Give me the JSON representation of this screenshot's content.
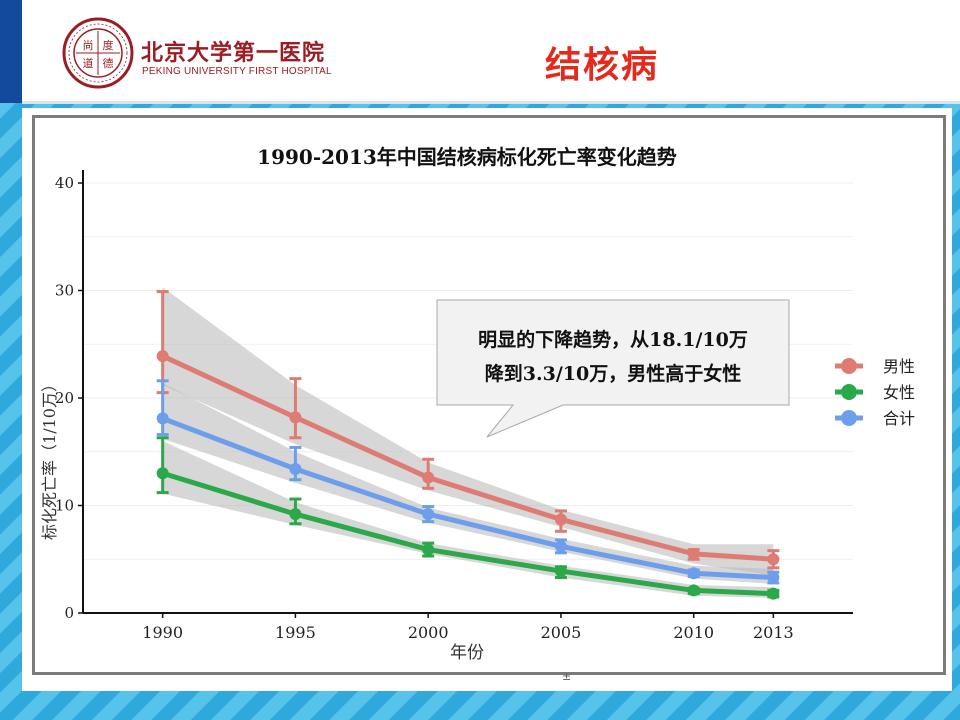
{
  "header": {
    "logo_seal_text": "尚 度 道 德",
    "logo_name_cn": "北京大学第一医院",
    "logo_name_en": "PEKING UNIVERSITY FIRST HOSPITAL",
    "page_title": "结核病"
  },
  "colors": {
    "male": "#de7b72",
    "female": "#2aa84a",
    "total": "#6d9eeb",
    "title_red": "#e32a1c",
    "logo_red": "#9b1c23",
    "band": "#c8c8c8"
  },
  "chart_data": {
    "type": "line",
    "title": "1990-2013年中国结核病标化死亡率变化趋势",
    "xlabel": "年份",
    "ylabel": "标化死亡率（1/10万）",
    "x": [
      1990,
      1995,
      2000,
      2005,
      2010,
      2013
    ],
    "x_ticks": [
      "1990",
      "1995",
      "2000",
      "2005",
      "2010",
      "2013"
    ],
    "y_ticks": [
      "0",
      "10",
      "20",
      "30",
      "40"
    ],
    "ylim": [
      0,
      40
    ],
    "grid": true,
    "legend_position": "right",
    "series": [
      {
        "name": "男性",
        "color": "#de7b72",
        "values": [
          23.9,
          18.2,
          12.6,
          8.7,
          5.5,
          5.0
        ],
        "error_low": [
          20.5,
          16.3,
          11.6,
          7.6,
          5.0,
          4.2
        ],
        "error_high": [
          29.9,
          21.8,
          14.3,
          9.5,
          5.9,
          5.8
        ],
        "band_low": [
          21.2,
          15.7,
          11.4,
          8.0,
          4.6,
          3.5
        ],
        "band_high": [
          30.3,
          21.2,
          14.0,
          9.6,
          6.4,
          6.4
        ]
      },
      {
        "name": "女性",
        "color": "#2aa84a",
        "values": [
          13.0,
          9.2,
          5.9,
          3.9,
          2.1,
          1.8
        ],
        "error_low": [
          11.2,
          8.3,
          5.3,
          3.3,
          1.8,
          1.5
        ],
        "error_high": [
          16.3,
          10.6,
          6.5,
          4.3,
          2.3,
          2.1
        ],
        "band_low": [
          11.1,
          8.2,
          5.5,
          3.3,
          1.6,
          1.4
        ],
        "band_high": [
          16.0,
          10.3,
          6.5,
          4.4,
          2.6,
          2.4
        ]
      },
      {
        "name": "合计",
        "color": "#6d9eeb",
        "values": [
          18.1,
          13.4,
          9.2,
          6.2,
          3.7,
          3.3
        ],
        "error_low": [
          16.6,
          12.4,
          8.5,
          5.6,
          3.4,
          2.8
        ],
        "error_high": [
          21.6,
          15.4,
          9.9,
          6.8,
          4.0,
          3.8
        ],
        "band_low": [
          16.2,
          12.1,
          8.4,
          5.7,
          3.2,
          2.7
        ],
        "band_high": [
          21.4,
          15.0,
          9.8,
          6.9,
          4.4,
          4.1
        ]
      }
    ],
    "annotations": [
      {
        "text_line1": "明显的下降趋势，从18.1/10万",
        "text_line2": "降到3.3/10万，男性高于女性"
      }
    ]
  },
  "footer": {
    "stray_mark": "±"
  }
}
